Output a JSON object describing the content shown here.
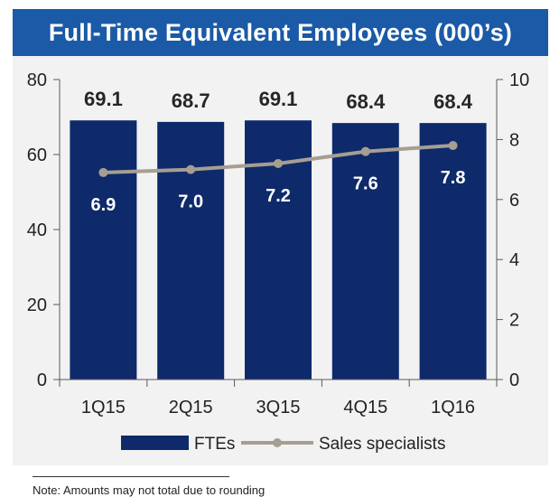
{
  "title": "Full-Time Equivalent Employees (000’s)",
  "footnote": "Note: Amounts may not total due to rounding",
  "colors": {
    "title_bg": "#1a5aa6",
    "bar": "#0e2a6b",
    "line": "#a79e92",
    "panel_bg": "#f2f2f2"
  },
  "chart_data": {
    "type": "bar",
    "categories": [
      "1Q15",
      "2Q15",
      "3Q15",
      "4Q15",
      "1Q16"
    ],
    "series": [
      {
        "name": "FTEs",
        "type": "bar",
        "axis": "left",
        "values": [
          69.1,
          68.7,
          69.1,
          68.4,
          68.4
        ],
        "labels": [
          "69.1",
          "68.7",
          "69.1",
          "68.4",
          "68.4"
        ]
      },
      {
        "name": "Sales specialists",
        "type": "line",
        "axis": "right",
        "values": [
          6.9,
          7.0,
          7.2,
          7.6,
          7.8
        ],
        "labels": [
          "6.9",
          "7.0",
          "7.2",
          "7.6",
          "7.8"
        ]
      }
    ],
    "y_left": {
      "ylim": [
        0,
        80
      ],
      "ticks": [
        "0",
        "20",
        "40",
        "60",
        "80"
      ]
    },
    "y_right": {
      "ylim": [
        0,
        10
      ],
      "ticks": [
        "0",
        "2",
        "4",
        "6",
        "8",
        "10"
      ]
    },
    "legend": "bottom",
    "grid": false
  }
}
